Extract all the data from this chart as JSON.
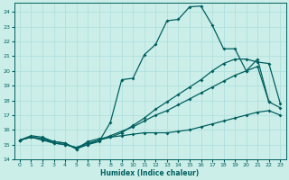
{
  "xlabel": "Humidex (Indice chaleur)",
  "bg_color": "#cceee8",
  "line_color": "#006060",
  "grid_color": "#aadddd",
  "xlim": [
    -0.5,
    23.5
  ],
  "ylim": [
    14,
    24.6
  ],
  "yticks": [
    14,
    15,
    16,
    17,
    18,
    19,
    20,
    21,
    22,
    23,
    24
  ],
  "xticks": [
    0,
    1,
    2,
    3,
    4,
    5,
    6,
    7,
    8,
    9,
    10,
    11,
    12,
    13,
    14,
    15,
    16,
    17,
    18,
    19,
    20,
    21,
    22,
    23
  ],
  "line1": [
    15.3,
    15.6,
    15.5,
    15.2,
    15.1,
    14.7,
    15.0,
    15.2,
    16.5,
    19.4,
    19.5,
    21.1,
    21.8,
    23.4,
    23.5,
    24.35,
    24.4,
    23.1,
    21.5,
    21.5,
    20.0,
    20.8,
    17.9,
    null
  ],
  "line2": [
    15.3,
    15.5,
    15.3,
    15.1,
    15.0,
    14.8,
    15.0,
    15.3,
    15.5,
    15.8,
    16.3,
    16.8,
    17.4,
    17.9,
    18.4,
    18.9,
    19.4,
    20.0,
    20.5,
    20.8,
    20.8,
    20.6,
    20.5,
    17.8
  ],
  "line3": [
    15.3,
    15.5,
    15.4,
    15.1,
    15.0,
    14.8,
    15.1,
    15.3,
    15.6,
    15.9,
    16.2,
    16.6,
    17.0,
    17.3,
    17.7,
    18.1,
    18.5,
    18.9,
    19.3,
    19.7,
    20.0,
    20.3,
    17.9,
    17.5
  ],
  "line4": [
    15.3,
    15.5,
    15.4,
    15.2,
    15.1,
    14.7,
    15.2,
    15.4,
    15.5,
    15.6,
    15.7,
    15.8,
    15.8,
    15.8,
    15.9,
    16.0,
    16.2,
    16.4,
    16.6,
    16.8,
    17.0,
    17.2,
    17.3,
    17.0
  ]
}
